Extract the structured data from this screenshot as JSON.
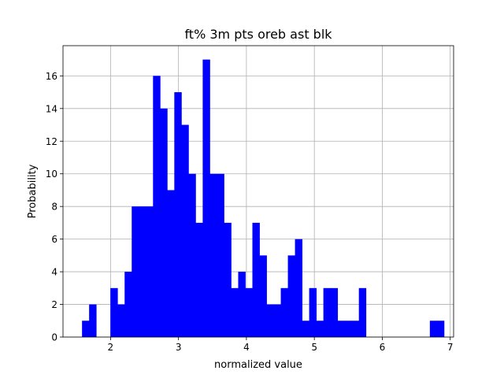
{
  "chart_data": {
    "type": "bar",
    "title": "ft% 3m pts oreb ast blk",
    "xlabel": "normalized value",
    "ylabel": "Probability",
    "xlim": [
      1.3,
      7.05
    ],
    "ylim": [
      0,
      17.85
    ],
    "xticks": [
      2,
      3,
      4,
      5,
      6,
      7
    ],
    "yticks": [
      0,
      2,
      4,
      6,
      8,
      10,
      12,
      14,
      16
    ],
    "grid": true,
    "bar_color": "#0000ff",
    "bin_start": 1.58,
    "bin_width": 0.1045,
    "values": [
      1,
      2,
      0,
      0,
      3,
      2,
      4,
      8,
      8,
      8,
      16,
      14,
      9,
      15,
      13,
      10,
      7,
      17,
      10,
      10,
      7,
      3,
      4,
      3,
      7,
      5,
      2,
      2,
      3,
      5,
      6,
      1,
      3,
      1,
      3,
      3,
      1,
      1,
      1,
      3,
      0,
      0,
      0,
      0,
      0,
      0,
      0,
      0,
      0,
      1,
      1
    ]
  }
}
